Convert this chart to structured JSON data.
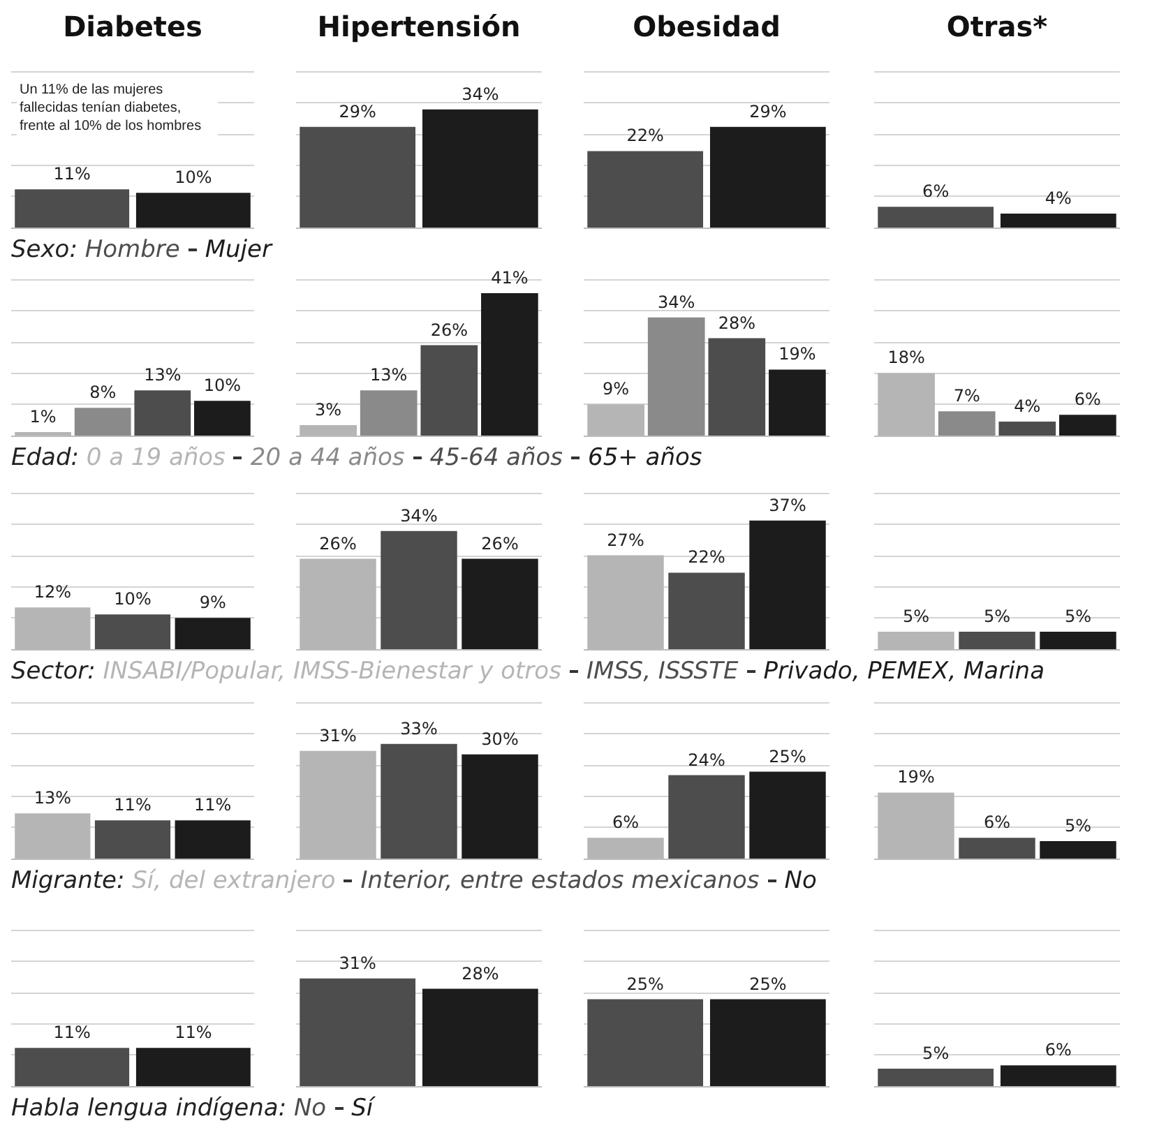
{
  "chart_data": [
    {
      "type": "bar",
      "title": "Diabetes",
      "categories": [
        null
      ],
      "ylim": [
        0,
        45
      ],
      "yticks": [
        {
          "value": 0,
          "label": null
        },
        {
          "value": 9,
          "label": null
        },
        {
          "value": 18,
          "label": null
        },
        {
          "value": 27,
          "label": null
        },
        {
          "value": 36,
          "label": null
        },
        {
          "value": 45,
          "label": null
        }
      ],
      "tick_labels": false,
      "grid": "y",
      "legend": "bottom",
      "legend_title": "Sexo:",
      "annotations": [
        "Un 11% de las mujeres fallecidas tenían diabetes, frente al 10% de los hombres"
      ],
      "series": [
        {
          "name": "Hombre",
          "color": "#4d4d4d",
          "values": [
            11
          ],
          "value_labels": [
            "11%"
          ]
        },
        {
          "name": "Mujer",
          "color": "#1c1c1c",
          "values": [
            10
          ],
          "value_labels": [
            "10%"
          ]
        }
      ]
    },
    {
      "type": "bar",
      "title": "Hipertensión",
      "categories": [
        null
      ],
      "ylim": [
        0,
        45
      ],
      "yticks": [
        {
          "value": 0,
          "label": null
        },
        {
          "value": 9,
          "label": null
        },
        {
          "value": 18,
          "label": null
        },
        {
          "value": 27,
          "label": null
        },
        {
          "value": 36,
          "label": null
        },
        {
          "value": 45,
          "label": null
        }
      ],
      "tick_labels": false,
      "grid": "y",
      "series": [
        {
          "color": "#4d4d4d",
          "values": [
            29
          ],
          "value_labels": [
            "29%"
          ]
        },
        {
          "color": "#1c1c1c",
          "values": [
            34
          ],
          "value_labels": [
            "34%"
          ]
        }
      ]
    },
    {
      "type": "bar",
      "title": "Obesidad",
      "categories": [
        null
      ],
      "ylim": [
        0,
        45
      ],
      "yticks": [
        {
          "value": 0,
          "label": null
        },
        {
          "value": 9,
          "label": null
        },
        {
          "value": 18,
          "label": null
        },
        {
          "value": 27,
          "label": null
        },
        {
          "value": 36,
          "label": null
        },
        {
          "value": 45,
          "label": null
        }
      ],
      "tick_labels": false,
      "grid": "y",
      "series": [
        {
          "color": "#4d4d4d",
          "values": [
            22
          ],
          "value_labels": [
            "22%"
          ]
        },
        {
          "color": "#1c1c1c",
          "values": [
            29
          ],
          "value_labels": [
            "29%"
          ]
        }
      ]
    },
    {
      "type": "bar",
      "title": "Otras*",
      "categories": [
        null
      ],
      "ylim": [
        0,
        45
      ],
      "yticks": [
        {
          "value": 0,
          "label": null
        },
        {
          "value": 9,
          "label": null
        },
        {
          "value": 18,
          "label": null
        },
        {
          "value": 27,
          "label": null
        },
        {
          "value": 36,
          "label": null
        },
        {
          "value": 45,
          "label": null
        }
      ],
      "tick_labels": false,
      "grid": "y",
      "series": [
        {
          "color": "#4d4d4d",
          "values": [
            6
          ],
          "value_labels": [
            "6%"
          ]
        },
        {
          "color": "#1c1c1c",
          "values": [
            4
          ],
          "value_labels": [
            "4%"
          ]
        }
      ]
    },
    {
      "type": "bar",
      "categories": [
        null
      ],
      "ylim": [
        0,
        45
      ],
      "yticks": [
        {
          "value": 0,
          "label": null
        },
        {
          "value": 9,
          "label": null
        },
        {
          "value": 18,
          "label": null
        },
        {
          "value": 27,
          "label": null
        },
        {
          "value": 36,
          "label": null
        },
        {
          "value": 45,
          "label": null
        }
      ],
      "tick_labels": false,
      "grid": "y",
      "legend": "bottom",
      "legend_title": "Edad:",
      "series": [
        {
          "name": "0 a 19 años",
          "color": "#b5b5b5",
          "values": [
            1
          ],
          "value_labels": [
            "1%"
          ]
        },
        {
          "name": "20 a 44 años",
          "color": "#8a8a8a",
          "values": [
            8
          ],
          "value_labels": [
            "8%"
          ]
        },
        {
          "name": "45-64 años",
          "color": "#4d4d4d",
          "values": [
            13
          ],
          "value_labels": [
            "13%"
          ]
        },
        {
          "name": "65+ años",
          "color": "#1c1c1c",
          "values": [
            10
          ],
          "value_labels": [
            "10%"
          ]
        }
      ]
    },
    {
      "type": "bar",
      "categories": [
        null
      ],
      "ylim": [
        0,
        45
      ],
      "yticks": [
        {
          "value": 0,
          "label": null
        },
        {
          "value": 9,
          "label": null
        },
        {
          "value": 18,
          "label": null
        },
        {
          "value": 27,
          "label": null
        },
        {
          "value": 36,
          "label": null
        },
        {
          "value": 45,
          "label": null
        }
      ],
      "tick_labels": false,
      "grid": "y",
      "series": [
        {
          "color": "#b5b5b5",
          "values": [
            3
          ],
          "value_labels": [
            "3%"
          ]
        },
        {
          "color": "#8a8a8a",
          "values": [
            13
          ],
          "value_labels": [
            "13%"
          ]
        },
        {
          "color": "#4d4d4d",
          "values": [
            26
          ],
          "value_labels": [
            "26%"
          ]
        },
        {
          "color": "#1c1c1c",
          "values": [
            41
          ],
          "value_labels": [
            "41%"
          ]
        }
      ]
    },
    {
      "type": "bar",
      "categories": [
        null
      ],
      "ylim": [
        0,
        45
      ],
      "yticks": [
        {
          "value": 0,
          "label": null
        },
        {
          "value": 9,
          "label": null
        },
        {
          "value": 18,
          "label": null
        },
        {
          "value": 27,
          "label": null
        },
        {
          "value": 36,
          "label": null
        },
        {
          "value": 45,
          "label": null
        }
      ],
      "tick_labels": false,
      "grid": "y",
      "series": [
        {
          "color": "#b5b5b5",
          "values": [
            9
          ],
          "value_labels": [
            "9%"
          ]
        },
        {
          "color": "#8a8a8a",
          "values": [
            34
          ],
          "value_labels": [
            "34%"
          ]
        },
        {
          "color": "#4d4d4d",
          "values": [
            28
          ],
          "value_labels": [
            "28%"
          ]
        },
        {
          "color": "#1c1c1c",
          "values": [
            19
          ],
          "value_labels": [
            "19%"
          ]
        }
      ]
    },
    {
      "type": "bar",
      "categories": [
        null
      ],
      "ylim": [
        0,
        45
      ],
      "yticks": [
        {
          "value": 0,
          "label": null
        },
        {
          "value": 9,
          "label": null
        },
        {
          "value": 18,
          "label": null
        },
        {
          "value": 27,
          "label": null
        },
        {
          "value": 36,
          "label": null
        },
        {
          "value": 45,
          "label": null
        }
      ],
      "tick_labels": false,
      "grid": "y",
      "series": [
        {
          "color": "#b5b5b5",
          "values": [
            18
          ],
          "value_labels": [
            "18%"
          ]
        },
        {
          "color": "#8a8a8a",
          "values": [
            7
          ],
          "value_labels": [
            "7%"
          ]
        },
        {
          "color": "#4d4d4d",
          "values": [
            4
          ],
          "value_labels": [
            "4%"
          ]
        },
        {
          "color": "#1c1c1c",
          "values": [
            6
          ],
          "value_labels": [
            "6%"
          ]
        }
      ]
    },
    {
      "type": "bar",
      "categories": [
        null
      ],
      "ylim": [
        0,
        45
      ],
      "yticks": [
        {
          "value": 0,
          "label": null
        },
        {
          "value": 9,
          "label": null
        },
        {
          "value": 18,
          "label": null
        },
        {
          "value": 27,
          "label": null
        },
        {
          "value": 36,
          "label": null
        },
        {
          "value": 45,
          "label": null
        }
      ],
      "tick_labels": false,
      "grid": "y",
      "legend": "bottom",
      "legend_title": "Sector:",
      "series": [
        {
          "name": "INSABI/Popular, IMSS-Bienestar y otros",
          "color": "#b5b5b5",
          "values": [
            12
          ],
          "value_labels": [
            "12%"
          ]
        },
        {
          "name": "IMSS, ISSSTE",
          "color": "#4d4d4d",
          "values": [
            10
          ],
          "value_labels": [
            "10%"
          ]
        },
        {
          "name": "Privado, PEMEX, Marina",
          "color": "#1c1c1c",
          "values": [
            9
          ],
          "value_labels": [
            "9%"
          ]
        }
      ]
    },
    {
      "type": "bar",
      "categories": [
        null
      ],
      "ylim": [
        0,
        45
      ],
      "yticks": [
        {
          "value": 0,
          "label": null
        },
        {
          "value": 9,
          "label": null
        },
        {
          "value": 18,
          "label": null
        },
        {
          "value": 27,
          "label": null
        },
        {
          "value": 36,
          "label": null
        },
        {
          "value": 45,
          "label": null
        }
      ],
      "tick_labels": false,
      "grid": "y",
      "series": [
        {
          "color": "#b5b5b5",
          "values": [
            26
          ],
          "value_labels": [
            "26%"
          ]
        },
        {
          "color": "#4d4d4d",
          "values": [
            34
          ],
          "value_labels": [
            "34%"
          ]
        },
        {
          "color": "#1c1c1c",
          "values": [
            26
          ],
          "value_labels": [
            "26%"
          ]
        }
      ]
    },
    {
      "type": "bar",
      "categories": [
        null
      ],
      "ylim": [
        0,
        45
      ],
      "yticks": [
        {
          "value": 0,
          "label": null
        },
        {
          "value": 9,
          "label": null
        },
        {
          "value": 18,
          "label": null
        },
        {
          "value": 27,
          "label": null
        },
        {
          "value": 36,
          "label": null
        },
        {
          "value": 45,
          "label": null
        }
      ],
      "tick_labels": false,
      "grid": "y",
      "series": [
        {
          "color": "#b5b5b5",
          "values": [
            27
          ],
          "value_labels": [
            "27%"
          ]
        },
        {
          "color": "#4d4d4d",
          "values": [
            22
          ],
          "value_labels": [
            "22%"
          ]
        },
        {
          "color": "#1c1c1c",
          "values": [
            37
          ],
          "value_labels": [
            "37%"
          ]
        }
      ]
    },
    {
      "type": "bar",
      "categories": [
        null
      ],
      "ylim": [
        0,
        45
      ],
      "yticks": [
        {
          "value": 0,
          "label": null
        },
        {
          "value": 9,
          "label": null
        },
        {
          "value": 18,
          "label": null
        },
        {
          "value": 27,
          "label": null
        },
        {
          "value": 36,
          "label": null
        },
        {
          "value": 45,
          "label": null
        }
      ],
      "tick_labels": false,
      "grid": "y",
      "series": [
        {
          "color": "#b5b5b5",
          "values": [
            5
          ],
          "value_labels": [
            "5%"
          ]
        },
        {
          "color": "#4d4d4d",
          "values": [
            5
          ],
          "value_labels": [
            "5%"
          ]
        },
        {
          "color": "#1c1c1c",
          "values": [
            5
          ],
          "value_labels": [
            "5%"
          ]
        }
      ]
    },
    {
      "type": "bar",
      "categories": [
        null
      ],
      "ylim": [
        0,
        45
      ],
      "yticks": [
        {
          "value": 0,
          "label": null
        },
        {
          "value": 9,
          "label": null
        },
        {
          "value": 18,
          "label": null
        },
        {
          "value": 27,
          "label": null
        },
        {
          "value": 36,
          "label": null
        },
        {
          "value": 45,
          "label": null
        }
      ],
      "tick_labels": false,
      "grid": "y",
      "legend": "bottom",
      "legend_title": "Migrante:",
      "series": [
        {
          "name": "Sí, del extranjero",
          "color": "#b5b5b5",
          "values": [
            13
          ],
          "value_labels": [
            "13%"
          ]
        },
        {
          "name": "Interior, entre estados mexicanos",
          "color": "#4d4d4d",
          "values": [
            11
          ],
          "value_labels": [
            "11%"
          ]
        },
        {
          "name": "No",
          "color": "#1c1c1c",
          "values": [
            11
          ],
          "value_labels": [
            "11%"
          ]
        }
      ]
    },
    {
      "type": "bar",
      "categories": [
        null
      ],
      "ylim": [
        0,
        45
      ],
      "yticks": [
        {
          "value": 0,
          "label": null
        },
        {
          "value": 9,
          "label": null
        },
        {
          "value": 18,
          "label": null
        },
        {
          "value": 27,
          "label": null
        },
        {
          "value": 36,
          "label": null
        },
        {
          "value": 45,
          "label": null
        }
      ],
      "tick_labels": false,
      "grid": "y",
      "series": [
        {
          "color": "#b5b5b5",
          "values": [
            31
          ],
          "value_labels": [
            "31%"
          ]
        },
        {
          "color": "#4d4d4d",
          "values": [
            33
          ],
          "value_labels": [
            "33%"
          ]
        },
        {
          "color": "#1c1c1c",
          "values": [
            30
          ],
          "value_labels": [
            "30%"
          ]
        }
      ]
    },
    {
      "type": "bar",
      "categories": [
        null
      ],
      "ylim": [
        0,
        45
      ],
      "yticks": [
        {
          "value": 0,
          "label": null
        },
        {
          "value": 9,
          "label": null
        },
        {
          "value": 18,
          "label": null
        },
        {
          "value": 27,
          "label": null
        },
        {
          "value": 36,
          "label": null
        },
        {
          "value": 45,
          "label": null
        }
      ],
      "tick_labels": false,
      "grid": "y",
      "series": [
        {
          "color": "#b5b5b5",
          "values": [
            6
          ],
          "value_labels": [
            "6%"
          ]
        },
        {
          "color": "#4d4d4d",
          "values": [
            24
          ],
          "value_labels": [
            "24%"
          ]
        },
        {
          "color": "#1c1c1c",
          "values": [
            25
          ],
          "value_labels": [
            "25%"
          ]
        }
      ]
    },
    {
      "type": "bar",
      "categories": [
        null
      ],
      "ylim": [
        0,
        45
      ],
      "yticks": [
        {
          "value": 0,
          "label": null
        },
        {
          "value": 9,
          "label": null
        },
        {
          "value": 18,
          "label": null
        },
        {
          "value": 27,
          "label": null
        },
        {
          "value": 36,
          "label": null
        },
        {
          "value": 45,
          "label": null
        }
      ],
      "tick_labels": false,
      "grid": "y",
      "series": [
        {
          "color": "#b5b5b5",
          "values": [
            19
          ],
          "value_labels": [
            "19%"
          ]
        },
        {
          "color": "#4d4d4d",
          "values": [
            6
          ],
          "value_labels": [
            "6%"
          ]
        },
        {
          "color": "#1c1c1c",
          "values": [
            5
          ],
          "value_labels": [
            "5%"
          ]
        }
      ]
    },
    {
      "type": "bar",
      "categories": [
        null
      ],
      "ylim": [
        0,
        45
      ],
      "yticks": [
        {
          "value": 0,
          "label": null
        },
        {
          "value": 9,
          "label": null
        },
        {
          "value": 18,
          "label": null
        },
        {
          "value": 27,
          "label": null
        },
        {
          "value": 36,
          "label": null
        },
        {
          "value": 45,
          "label": null
        }
      ],
      "tick_labels": false,
      "grid": "y",
      "legend": "bottom",
      "legend_title": "Habla lengua indígena:",
      "series": [
        {
          "name": "No",
          "color": "#4d4d4d",
          "values": [
            11
          ],
          "value_labels": [
            "11%"
          ]
        },
        {
          "name": "Sí",
          "color": "#1c1c1c",
          "values": [
            11
          ],
          "value_labels": [
            "11%"
          ]
        }
      ]
    },
    {
      "type": "bar",
      "categories": [
        null
      ],
      "ylim": [
        0,
        45
      ],
      "yticks": [
        {
          "value": 0,
          "label": null
        },
        {
          "value": 9,
          "label": null
        },
        {
          "value": 18,
          "label": null
        },
        {
          "value": 27,
          "label": null
        },
        {
          "value": 36,
          "label": null
        },
        {
          "value": 45,
          "label": null
        }
      ],
      "tick_labels": false,
      "grid": "y",
      "series": [
        {
          "color": "#4d4d4d",
          "values": [
            31
          ],
          "value_labels": [
            "31%"
          ]
        },
        {
          "color": "#1c1c1c",
          "values": [
            28
          ],
          "value_labels": [
            "28%"
          ]
        }
      ]
    },
    {
      "type": "bar",
      "categories": [
        null
      ],
      "ylim": [
        0,
        45
      ],
      "yticks": [
        {
          "value": 0,
          "label": null
        },
        {
          "value": 9,
          "label": null
        },
        {
          "value": 18,
          "label": null
        },
        {
          "value": 27,
          "label": null
        },
        {
          "value": 36,
          "label": null
        },
        {
          "value": 45,
          "label": null
        }
      ],
      "tick_labels": false,
      "grid": "y",
      "series": [
        {
          "color": "#4d4d4d",
          "values": [
            25
          ],
          "value_labels": [
            "25%"
          ]
        },
        {
          "color": "#1c1c1c",
          "values": [
            25
          ],
          "value_labels": [
            "25%"
          ]
        }
      ]
    },
    {
      "type": "bar",
      "categories": [
        null
      ],
      "ylim": [
        0,
        45
      ],
      "yticks": [
        {
          "value": 0,
          "label": null
        },
        {
          "value": 9,
          "label": null
        },
        {
          "value": 18,
          "label": null
        },
        {
          "value": 27,
          "label": null
        },
        {
          "value": 36,
          "label": null
        },
        {
          "value": 45,
          "label": null
        }
      ],
      "tick_labels": false,
      "grid": "y",
      "series": [
        {
          "color": "#4d4d4d",
          "values": [
            5
          ],
          "value_labels": [
            "5%"
          ]
        },
        {
          "color": "#1c1c1c",
          "values": [
            6
          ],
          "value_labels": [
            "6%"
          ]
        }
      ]
    }
  ]
}
